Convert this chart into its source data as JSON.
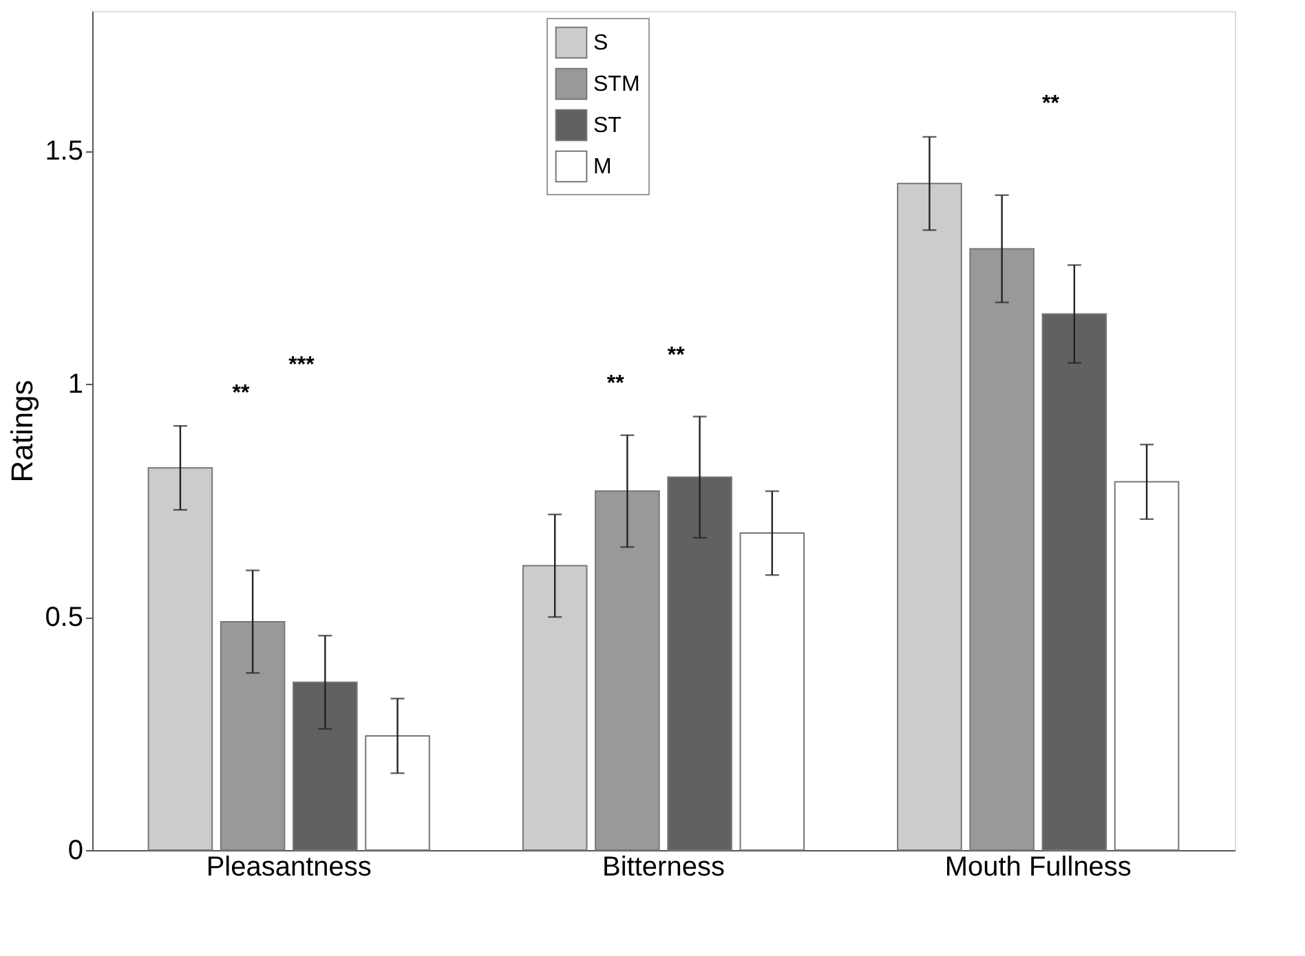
{
  "chart_data": {
    "type": "bar",
    "ylabel": "Ratings",
    "categories": [
      "Pleasantness",
      "Bitterness",
      "Mouth Fullness"
    ],
    "series": [
      {
        "name": "S",
        "color": "#cccccc",
        "values": [
          0.82,
          0.61,
          1.43
        ],
        "errors": [
          0.09,
          0.11,
          0.1
        ]
      },
      {
        "name": "STM",
        "color": "#999999",
        "values": [
          0.49,
          0.77,
          1.29
        ],
        "errors": [
          0.11,
          0.12,
          0.115
        ]
      },
      {
        "name": "ST",
        "color": "#616161",
        "values": [
          0.36,
          0.8,
          1.15
        ],
        "errors": [
          0.1,
          0.13,
          0.105
        ]
      },
      {
        "name": "M",
        "color": "#ffffff",
        "values": [
          0.245,
          0.68,
          0.79
        ],
        "errors": [
          0.08,
          0.09,
          0.08
        ]
      }
    ],
    "ylim": [
      0,
      1.8
    ],
    "yticks": [
      0,
      0.5,
      1,
      1.5
    ],
    "grid": false,
    "legend": "top",
    "annotations": [
      "***",
      "**",
      "**",
      "**",
      "**"
    ]
  }
}
